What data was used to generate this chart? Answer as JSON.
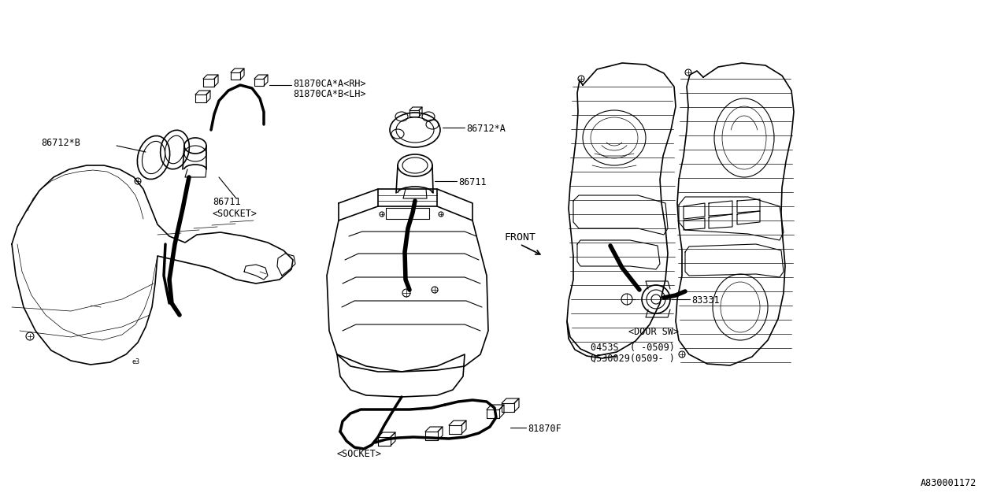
{
  "bg_color": "#ffffff",
  "line_color": "#000000",
  "fig_width": 12.8,
  "fig_height": 6.4,
  "dpi": 100,
  "diagram_id": "A830001172",
  "labels": {
    "harness_rh": "81870CA*A<RH>",
    "harness_lh": "81870CA*B<LH>",
    "part_86712B": "86712*B",
    "part_86711_socket": "86711\n<SOCKET>",
    "part_86712A": "86712*A",
    "part_86711": "86711",
    "socket_bottom": "<SOCKET>",
    "part_81870F": "81870F",
    "part_83331": "83331",
    "part_door_sw": "<DOOR SW>",
    "part_code1": "0453S  ( -0509)",
    "part_code2": "Q530029(0509- )",
    "front_label": "FRONT"
  },
  "font_size": 8.5,
  "font_family": "monospace"
}
